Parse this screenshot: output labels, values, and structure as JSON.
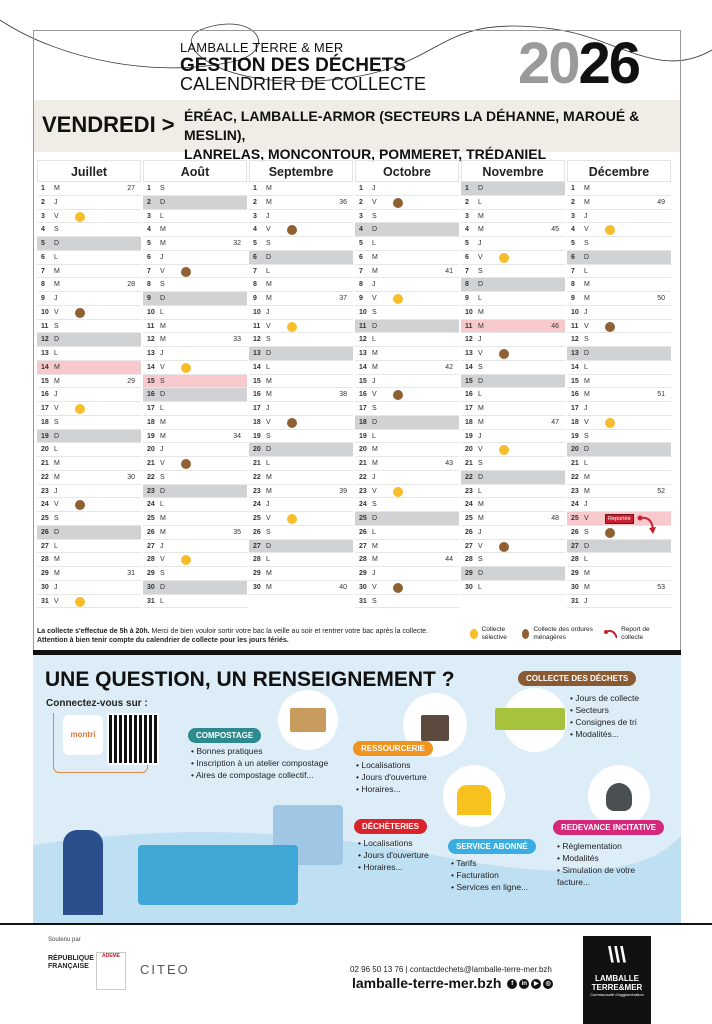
{
  "header": {
    "org": "LAMBALLE TERRE & MER",
    "title": "GESTION DES DÉCHETS",
    "subtitle": "CALENDRIER DE COLLECTE",
    "year_a": "20",
    "year_b": "26"
  },
  "band": {
    "day": "VENDREDI >",
    "towns_line1": "ÉRÉAC, LAMBALLE-ARMOR (SECTEURS LA DÉHANNE, MAROUÉ & MESLIN),",
    "towns_line2": "LANRELAS, MONCONTOUR, POMMERET, TRÉDANIEL"
  },
  "weekday_letters": [
    "L",
    "M",
    "M",
    "J",
    "V",
    "S",
    "D"
  ],
  "colors": {
    "selective": "#f7bd2c",
    "household": "#8f6132",
    "sunday": "#d1d2d4",
    "holiday": "#f8c9cc",
    "report": "#c8202f"
  },
  "months": [
    {
      "name": "Juillet",
      "days": 31,
      "start": 2,
      "weeks": {
        "1": 27,
        "8": 28,
        "15": 29,
        "22": 30,
        "29": 31
      },
      "yellow": [
        3,
        17,
        31
      ],
      "brown": [
        10,
        24
      ],
      "holidays": [
        14
      ]
    },
    {
      "name": "Août",
      "days": 31,
      "start": 5,
      "weeks": {
        "5": 32,
        "12": 33,
        "19": 34,
        "26": 35
      },
      "yellow": [
        14,
        28
      ],
      "brown": [
        7,
        21
      ],
      "holidays": [
        15
      ]
    },
    {
      "name": "Septembre",
      "days": 30,
      "start": 1,
      "weeks": {
        "2": 36,
        "9": 37,
        "16": 38,
        "23": 39,
        "30": 40
      },
      "yellow": [
        11,
        25
      ],
      "brown": [
        4,
        18
      ],
      "holidays": []
    },
    {
      "name": "Octobre",
      "days": 31,
      "start": 3,
      "weeks": {
        "7": 41,
        "14": 42,
        "21": 43,
        "28": 44
      },
      "yellow": [
        9,
        23
      ],
      "brown": [
        2,
        16,
        30
      ],
      "holidays": []
    },
    {
      "name": "Novembre",
      "days": 30,
      "start": 6,
      "weeks": {
        "4": 45,
        "11": 46,
        "18": 47,
        "25": 48
      },
      "yellow": [
        6,
        20
      ],
      "brown": [
        13,
        27
      ],
      "holidays": [
        11
      ]
    },
    {
      "name": "Décembre",
      "days": 31,
      "start": 1,
      "weeks": {
        "2": 49,
        "9": 50,
        "16": 51,
        "23": 52,
        "30": 53
      },
      "yellow": [
        4,
        18
      ],
      "brown": [
        11,
        26
      ],
      "holidays": [
        25
      ],
      "report_day": 25,
      "report_label": "Reportée"
    }
  ],
  "legend": {
    "line1_bold": "La collecte s'effectue de 5h à 20h.",
    "line1": " Merci de bien vouloir sortir votre bac la veille au soir et rentrer votre bac après la collecte.",
    "line2": "Attention à bien tenir compte du calendrier de collecte pour les jours fériés.",
    "selective": "Collecte sélective",
    "household": "Collecte des ordures ménagères",
    "report": "Report de collecte"
  },
  "info": {
    "question": "UNE QUESTION, UN RENSEIGNEMENT ?",
    "connect": "Connectez-vous sur :",
    "app": "montri",
    "compostage": {
      "title": "COMPOSTAGE",
      "items": [
        "Bonnes pratiques",
        "Inscription à un atelier compostage",
        "Aires de compostage collectif..."
      ]
    },
    "ressourcerie": {
      "title": "RESSOURCERIE",
      "items": [
        "Localisations",
        "Jours d'ouverture",
        "Horaires..."
      ]
    },
    "collecte": {
      "title": "COLLECTE DES DÉCHETS",
      "items": [
        "Jours de collecte",
        "Secteurs",
        "Consignes de tri",
        "Modalités..."
      ]
    },
    "decheteries": {
      "title": "DÉCHÈTERIES",
      "items": [
        "Localisations",
        "Jours d'ouverture",
        "Horaires..."
      ]
    },
    "abonne": {
      "title": "SERVICE ABONNÉ",
      "items": [
        "Tarifs",
        "Facturation",
        "Services en ligne..."
      ]
    },
    "redevance": {
      "title": "REDEVANCE INCITATIVE",
      "items": [
        "Règlementation",
        "Modalités",
        "Simulation de votre facture..."
      ]
    }
  },
  "footer": {
    "supported": "Soutenu par",
    "rf": "RÉPUBLIQUE FRANÇAISE",
    "ademe": "ADEME",
    "citeo": "CITEO",
    "contact": "02 96 50 13 76 | contactdechets@lamballe-terre-mer.bzh",
    "site": "lamballe-terre-mer.bzh",
    "logo1": "LAMBALLE",
    "logo2": "TERRE&MER",
    "logo3": "Communauté d'agglomération"
  }
}
